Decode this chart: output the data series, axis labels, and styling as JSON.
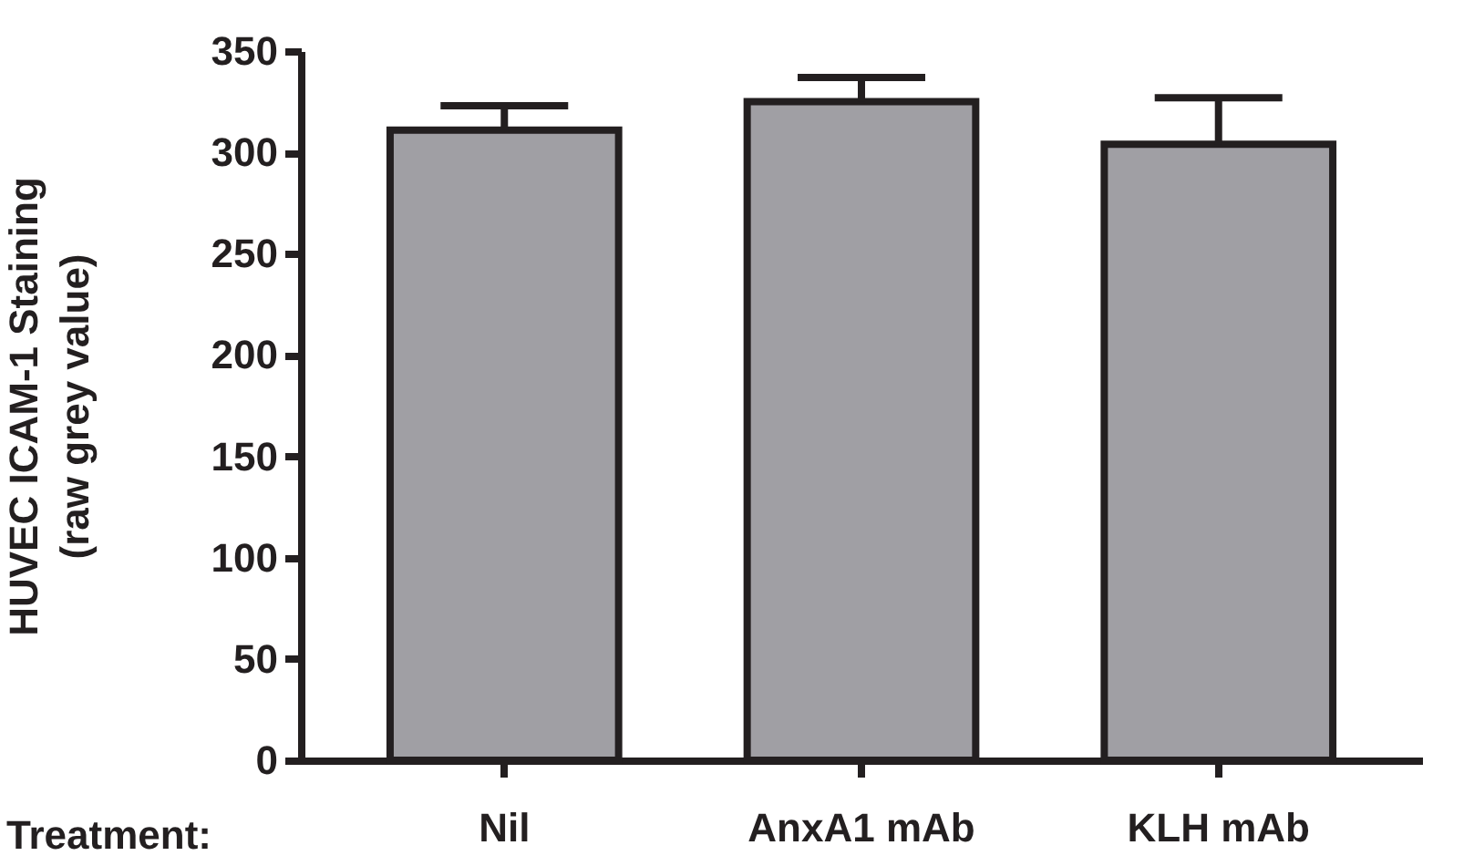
{
  "chart_data": {
    "type": "bar",
    "categories": [
      "Nil",
      "AnxA1 mAb",
      "KLH mAb"
    ],
    "values": [
      311,
      325,
      304
    ],
    "errors": [
      [
        311,
        323
      ],
      [
        325,
        337
      ],
      [
        304,
        327
      ]
    ],
    "color": "#a09fa4",
    "xlabel": "Treatment:",
    "ylabel": "HUVEC ICAM-1 Staining\n(raw grey value)",
    "ylim": [
      0,
      350
    ],
    "yticks": [
      0,
      50,
      100,
      150,
      200,
      250,
      300,
      350
    ],
    "grid": false
  }
}
